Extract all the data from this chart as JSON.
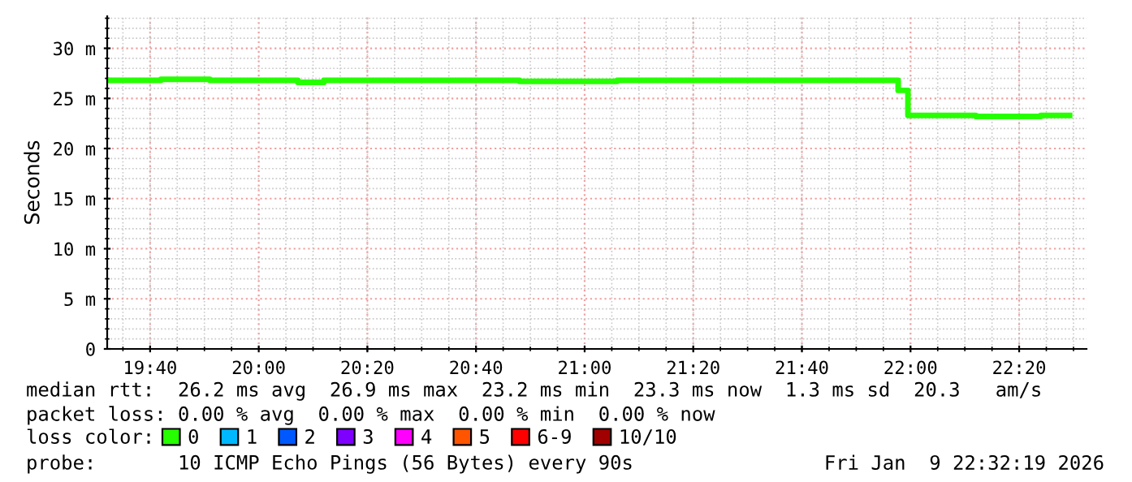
{
  "chart_data": {
    "type": "step",
    "ylabel": "Seconds",
    "x": [
      19.535,
      19.7,
      19.85,
      20.0,
      20.12,
      20.2,
      20.5,
      20.8,
      21.1,
      21.5,
      21.962,
      21.992,
      22.2,
      22.4,
      22.488
    ],
    "series": [
      {
        "name": "0",
        "color": "#26ff00",
        "values": [
          26.8,
          26.9,
          26.8,
          26.8,
          26.6,
          26.8,
          26.8,
          26.7,
          26.8,
          26.8,
          25.8,
          23.3,
          23.2,
          23.3,
          23.3
        ]
      },
      {
        "name": "1",
        "color": "#00b8ff",
        "values": [
          null,
          null,
          null,
          null,
          null,
          null,
          null,
          null,
          null,
          null,
          null,
          null,
          null,
          null,
          null
        ]
      },
      {
        "name": "2",
        "color": "#0059ff",
        "values": [
          null,
          null,
          null,
          null,
          null,
          null,
          null,
          null,
          null,
          null,
          null,
          null,
          null,
          null,
          null
        ]
      },
      {
        "name": "3",
        "color": "#7e00ff",
        "values": [
          null,
          null,
          null,
          null,
          null,
          null,
          null,
          null,
          null,
          null,
          null,
          null,
          null,
          null,
          null
        ]
      },
      {
        "name": "4",
        "color": "#ff00ff",
        "values": [
          null,
          null,
          null,
          null,
          null,
          null,
          null,
          null,
          null,
          null,
          null,
          null,
          null,
          null,
          null
        ]
      },
      {
        "name": "5",
        "color": "#ff5500",
        "values": [
          null,
          null,
          null,
          null,
          null,
          null,
          null,
          null,
          null,
          null,
          null,
          null,
          null,
          null,
          null
        ]
      },
      {
        "name": "6-9",
        "color": "#ff0000",
        "values": [
          null,
          null,
          null,
          null,
          null,
          null,
          null,
          null,
          null,
          null,
          null,
          null,
          null,
          null,
          null
        ]
      },
      {
        "name": "10/10",
        "color": "#a10000",
        "values": [
          null,
          null,
          null,
          null,
          null,
          null,
          null,
          null,
          null,
          null,
          null,
          null,
          null,
          null,
          null
        ]
      }
    ],
    "legend_title": "loss color:",
    "legend": "bottom",
    "xlim": [
      19.535,
      22.54
    ],
    "xticks": [
      {
        "value": 19.6667,
        "label": "19:40"
      },
      {
        "value": 20.0,
        "label": "20:00"
      },
      {
        "value": 20.3333,
        "label": "20:20"
      },
      {
        "value": 20.6667,
        "label": "20:40"
      },
      {
        "value": 21.0,
        "label": "21:00"
      },
      {
        "value": 21.3333,
        "label": "21:20"
      },
      {
        "value": 21.6667,
        "label": "21:40"
      },
      {
        "value": 22.0,
        "label": "22:00"
      },
      {
        "value": 22.3333,
        "label": "22:20"
      }
    ],
    "ylim": [
      0,
      33.2
    ],
    "yticks": [
      0,
      {
        "value": 5,
        "label": "5 m"
      },
      {
        "value": 10,
        "label": "10 m"
      },
      {
        "value": 15,
        "label": "15 m"
      },
      {
        "value": 20,
        "label": "20 m"
      },
      {
        "value": 25,
        "label": "25 m"
      },
      {
        "value": 30,
        "label": "30 m"
      }
    ],
    "grid": true,
    "line_style": "solid",
    "annotations": [
      "median rtt:  26.2 ms avg  26.9 ms max  23.2 ms min  23.3 ms now  1.3 ms sd  20.3   am/s",
      "packet loss: 0.00 % avg  0.00 % max  0.00 % min  0.00 % now",
      "probe:       10 ICMP Echo Pings (56 Bytes) every 90s",
      "Fri Jan  9 22:32:19 2026"
    ]
  }
}
